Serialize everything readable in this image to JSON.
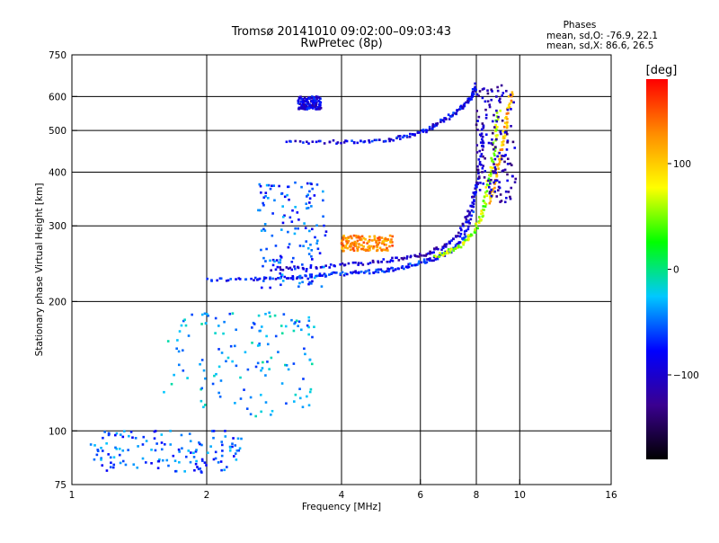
{
  "chart_data": {
    "type": "scatter",
    "title": "Tromsø 20141010 09:02:00–09:03:43",
    "subtitle": "RwPretec (8p)",
    "phases": {
      "heading": "Phases",
      "line_o": "mean, sd,O: -76.9, 22.1",
      "line_x": "mean, sd,X:  86.6, 26.5"
    },
    "xlabel": "Frequency [MHz]",
    "ylabel": "Stationary phase Virtual Height [km]",
    "x_scale": "log",
    "y_scale": "log",
    "xlim": [
      1,
      16
    ],
    "ylim": [
      75,
      750
    ],
    "x_ticks": [
      1,
      2,
      4,
      6,
      8,
      10,
      16
    ],
    "x_tick_labels": [
      "1",
      "2",
      "4",
      "6",
      "8",
      "10",
      "16"
    ],
    "y_ticks": [
      75,
      100,
      200,
      300,
      400,
      500,
      600,
      750
    ],
    "y_tick_labels": [
      "75",
      "100",
      "200",
      "300",
      "400",
      "500",
      "600",
      "750"
    ],
    "grid_x": [
      2,
      4,
      6,
      8,
      10
    ],
    "grid_y": [
      100,
      200,
      300,
      400,
      500,
      600
    ],
    "grid": true,
    "colorbar": {
      "label": "[deg]",
      "range": [
        -180,
        180
      ],
      "ticks": [
        100,
        0,
        -100
      ],
      "tick_labels": [
        "100",
        "0",
        "−100"
      ],
      "colors": [
        "#000000",
        "#3a0090",
        "#0000ff",
        "#00c8ff",
        "#00ff00",
        "#ffff00",
        "#ff8c00",
        "#ff0000"
      ]
    },
    "traces": [
      {
        "name": "",
        "phase": -75,
        "x": [
          2.0,
          2.5,
          3.0,
          3.5,
          4.0,
          4.5,
          5.0,
          5.5,
          6.0,
          6.5,
          7.0,
          7.5,
          7.8,
          8.0
        ],
        "y": [
          225,
          225,
          227,
          230,
          232,
          234,
          236,
          240,
          246,
          252,
          262,
          280,
          320,
          380
        ]
      },
      {
        "name": "",
        "phase": -100,
        "x": [
          2.8,
          3.3,
          4.0,
          4.8,
          5.5,
          6.2,
          6.8,
          7.3,
          7.7,
          8.0,
          8.2,
          8.3
        ],
        "y": [
          238,
          240,
          243,
          247,
          252,
          258,
          268,
          285,
          320,
          370,
          440,
          520
        ]
      },
      {
        "name": "",
        "phase": -85,
        "x": [
          3.0,
          3.8,
          4.5,
          5.2,
          5.8,
          6.3,
          6.7,
          7.1,
          7.5,
          7.8,
          8.0
        ],
        "y": [
          470,
          470,
          472,
          477,
          488,
          505,
          525,
          545,
          570,
          600,
          640
        ]
      },
      {
        "name": "",
        "phase": 60,
        "x": [
          6.5,
          7.0,
          7.5,
          7.9,
          8.2,
          8.4,
          8.6,
          8.8,
          9.0
        ],
        "y": [
          255,
          262,
          272,
          290,
          315,
          350,
          400,
          470,
          560
        ]
      },
      {
        "name": "",
        "phase": 110,
        "x": [
          8.6,
          8.8,
          9.0,
          9.2,
          9.4,
          9.6
        ],
        "y": [
          340,
          380,
          430,
          480,
          540,
          620
        ]
      }
    ],
    "clusters": [
      {
        "name": "",
        "phase": -60,
        "x_range": [
          2.6,
          3.7
        ],
        "y_range": [
          215,
          380
        ]
      },
      {
        "name": "",
        "phase": -35,
        "x_range": [
          1.6,
          3.5
        ],
        "y_range": [
          108,
          190
        ]
      },
      {
        "name": "",
        "phase": -110,
        "x_range": [
          8.0,
          9.8
        ],
        "y_range": [
          340,
          640
        ]
      },
      {
        "name": "",
        "phase": -55,
        "x_range": [
          1.1,
          2.4
        ],
        "y_range": [
          80,
          100
        ]
      },
      {
        "name": "",
        "phase": -90,
        "x_range": [
          3.2,
          3.6
        ],
        "y_range": [
          560,
          600
        ]
      },
      {
        "name": "",
        "phase": 130,
        "x_range": [
          4.0,
          5.2
        ],
        "y_range": [
          262,
          285
        ]
      }
    ]
  }
}
